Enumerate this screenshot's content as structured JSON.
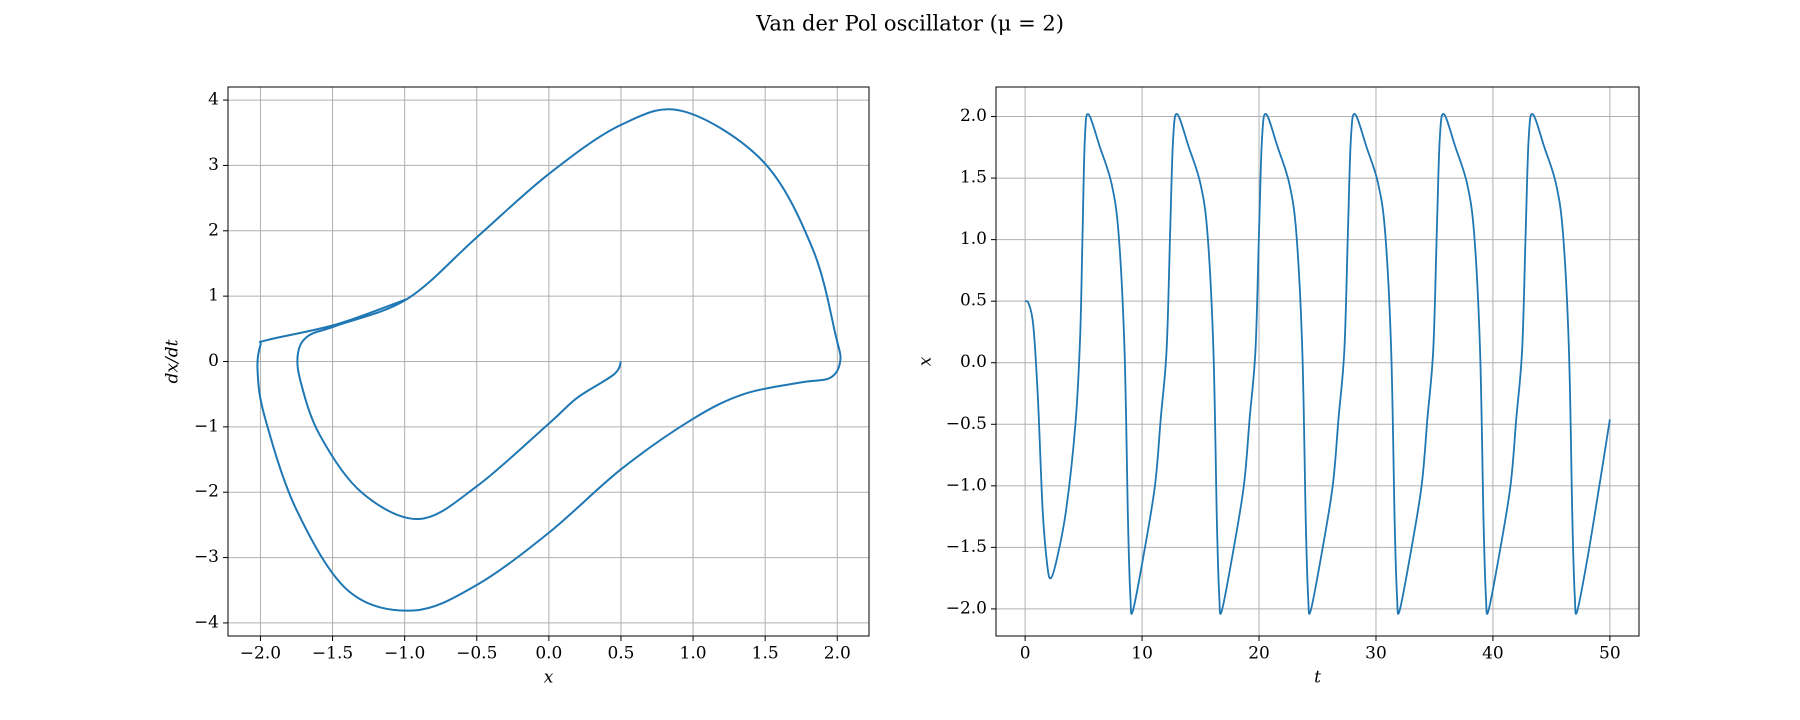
{
  "title": "Van der Pol oscillator (μ = 2)",
  "chart_data": [
    {
      "type": "line",
      "xlabel": "x",
      "ylabel": "dx/dt",
      "color": "#1f77b4",
      "grid": true,
      "xlim": [
        -2.225,
        2.22
      ],
      "ylim": [
        -4.2,
        4.2
      ],
      "xticks": [
        {
          "value": -2,
          "label": "−2.0"
        },
        {
          "value": -1.5,
          "label": "−1.5"
        },
        {
          "value": -1,
          "label": "−1.0"
        },
        {
          "value": -0.5,
          "label": "−0.5"
        },
        {
          "value": 0,
          "label": "0.0"
        },
        0.5,
        {
          "value": 1,
          "label": "1.0"
        },
        1.5,
        {
          "value": 2,
          "label": "2.0"
        }
      ],
      "yticks": [
        {
          "value": -4,
          "label": "−4"
        },
        {
          "value": -3,
          "label": "−3"
        },
        {
          "value": -2,
          "label": "−2"
        },
        {
          "value": -1,
          "label": "−1"
        },
        0,
        1,
        2,
        3,
        4
      ],
      "x": [
        0.5,
        0.45,
        0.2,
        0,
        -0.5,
        -0.9,
        -1.3,
        -1.59,
        -1.72,
        -1.74,
        -1.67,
        -1.47,
        -0.98,
        -0.5,
        0,
        0.5,
        0.93,
        1.49,
        1.83,
        1.99,
        2.02,
        1.95,
        1.75,
        1.35,
        0.99,
        0.5,
        0,
        -0.5,
        -0.94,
        -1.39,
        -1.75,
        -1.97,
        -2.02,
        -2.0,
        -1.95,
        -1.47,
        -0.98
      ],
      "values": [
        0,
        -0.2,
        -0.55,
        -0.95,
        -1.91,
        -2.41,
        -2.0,
        -1.12,
        -0.32,
        0.12,
        0.39,
        0.55,
        0.96,
        1.9,
        2.87,
        3.62,
        3.83,
        3.05,
        1.72,
        0.39,
        0,
        -0.25,
        -0.32,
        -0.5,
        -0.89,
        -1.65,
        -2.62,
        -3.42,
        -3.81,
        -3.51,
        -2.27,
        -0.85,
        -0.14,
        0.25,
        0.33,
        0.57,
        0.96
      ]
    },
    {
      "type": "line",
      "xlabel": "t",
      "ylabel": "x",
      "color": "#1f77b4",
      "grid": true,
      "xlim": [
        -2.49,
        52.49
      ],
      "ylim": [
        -2.22,
        2.24
      ],
      "xticks": [
        0,
        10,
        20,
        30,
        40,
        50
      ],
      "yticks": [
        {
          "value": -2,
          "label": "−2.0"
        },
        {
          "value": -1.5,
          "label": "−1.5"
        },
        {
          "value": -1,
          "label": "−1.0"
        },
        {
          "value": -0.5,
          "label": "−0.5"
        },
        {
          "value": 0,
          "label": "0.0"
        },
        0.5,
        {
          "value": 1,
          "label": "1.0"
        },
        1.5,
        {
          "value": 2,
          "label": "2.0"
        }
      ],
      "x": [
        0,
        0.3,
        0.7,
        1.1,
        1.5,
        1.9,
        2.2,
        2.7,
        3.5,
        4.3,
        4.7,
        4.9,
        5.1,
        5.4,
        6.4,
        7.4,
        8.0,
        8.5,
        8.8,
        9.0,
        9.2,
        10.1,
        11.1,
        11.6,
        12.1,
        12.4,
        12.65,
        13.0,
        14.0,
        15.0,
        15.6,
        16.1,
        16.4,
        16.6,
        16.8,
        17.7,
        18.7,
        19.2,
        19.7,
        20.0,
        20.25,
        20.6,
        21.6,
        22.6,
        23.2,
        23.7,
        24.0,
        24.2,
        24.4,
        25.3,
        26.3,
        26.8,
        27.3,
        27.6,
        27.85,
        28.2,
        29.2,
        30.2,
        30.8,
        31.3,
        31.6,
        31.8,
        32.0,
        32.9,
        33.9,
        34.4,
        34.9,
        35.2,
        35.45,
        35.8,
        36.8,
        37.8,
        38.4,
        38.9,
        39.2,
        39.4,
        39.6,
        40.5,
        41.5,
        42.0,
        42.5,
        42.8,
        43.05,
        43.4,
        44.4,
        45.4,
        46.0,
        46.5,
        46.8,
        47.0,
        47.2,
        48.1,
        49.1,
        50.0
      ],
      "values": [
        0.5,
        0.48,
        0.3,
        -0.3,
        -1.2,
        -1.65,
        -1.75,
        -1.6,
        -1.2,
        -0.5,
        0.2,
        1.0,
        1.8,
        2.02,
        1.75,
        1.45,
        1.04,
        0.1,
        -1.3,
        -1.9,
        -2.02,
        -1.58,
        -1.0,
        -0.45,
        0.11,
        1.06,
        1.81,
        2.02,
        1.75,
        1.45,
        1.04,
        0.1,
        -1.3,
        -1.9,
        -2.02,
        -1.58,
        -1.0,
        -0.45,
        0.11,
        1.06,
        1.81,
        2.02,
        1.75,
        1.45,
        1.04,
        0.1,
        -1.3,
        -1.9,
        -2.02,
        -1.58,
        -1.0,
        -0.45,
        0.11,
        1.06,
        1.81,
        2.02,
        1.75,
        1.45,
        1.04,
        0.1,
        -1.3,
        -1.9,
        -2.02,
        -1.58,
        -1.0,
        -0.45,
        0.11,
        1.06,
        1.81,
        2.02,
        1.75,
        1.45,
        1.04,
        0.1,
        -1.3,
        -1.9,
        -2.02,
        -1.58,
        -1.0,
        -0.45,
        0.11,
        1.06,
        1.81,
        2.02,
        1.75,
        1.45,
        1.04,
        0.1,
        -1.3,
        -1.9,
        -2.02,
        -1.58,
        -1.0,
        -0.46
      ]
    }
  ]
}
